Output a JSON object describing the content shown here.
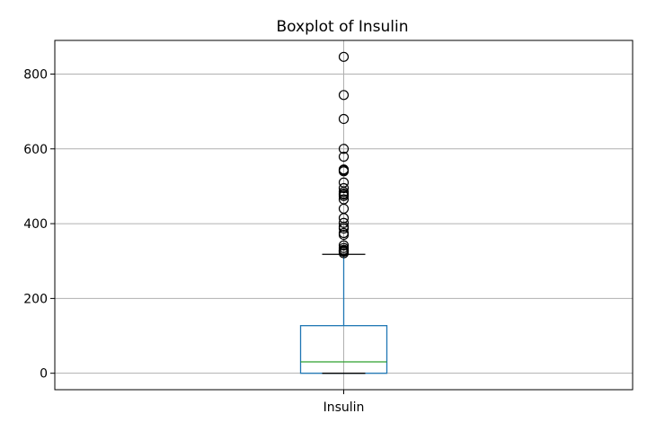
{
  "chart_data": {
    "type": "box",
    "title": "Boxplot of Insulin",
    "xlabel": "",
    "ylabel": "",
    "categories": [
      "Insulin"
    ],
    "ylim": [
      -44,
      890
    ],
    "yticks": [
      0,
      200,
      400,
      600,
      800
    ],
    "grid": true,
    "series": [
      {
        "name": "Insulin",
        "min": 0,
        "q1": 0,
        "median": 30.5,
        "q3": 127.25,
        "whisker_low": 0,
        "whisker_high": 318,
        "outliers": [
          846,
          744,
          680,
          600,
          579,
          545,
          543,
          540,
          510,
          495,
          485,
          480,
          478,
          474,
          465,
          440,
          415,
          402,
          392,
          387,
          375,
          370,
          342,
          335,
          330,
          328,
          326,
          325,
          321
        ]
      }
    ],
    "colors": {
      "box": "#1f77b4",
      "median": "#2ca02c",
      "whisker": "#1f77b4",
      "cap": "#000000",
      "outlier": "#000000",
      "grid": "#b0b0b0"
    }
  }
}
